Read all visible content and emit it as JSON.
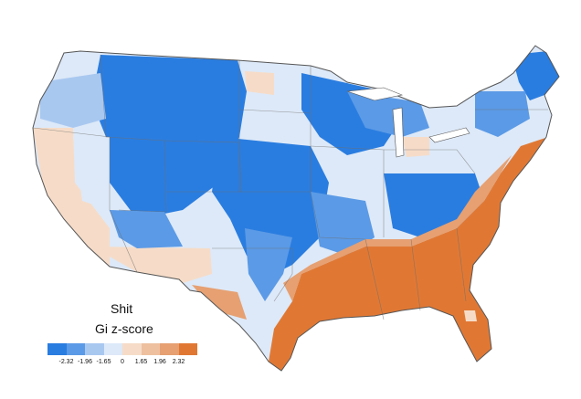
{
  "legend": {
    "word": "Shit",
    "scale_label": "Gi z-score",
    "ticks": [
      "-2.32",
      "-1.96",
      "-1.65",
      "0",
      "1.65",
      "1.96",
      "2.32"
    ],
    "colors": [
      "#2a7de0",
      "#5b9ae6",
      "#a9c8f0",
      "#dde9f8",
      "#f6dcc8",
      "#eec0a0",
      "#e6a072",
      "#e07834"
    ]
  },
  "colors": {
    "state_border": "#6e6e6e",
    "land_base": "#dde9f8"
  }
}
